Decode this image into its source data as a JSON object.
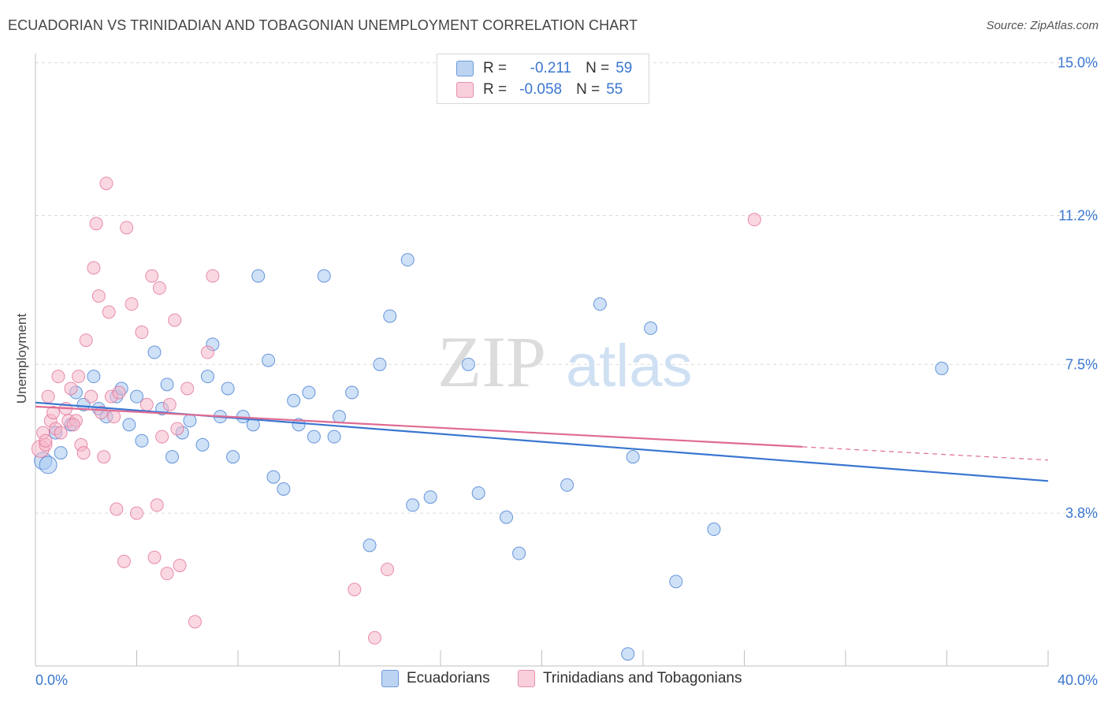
{
  "header": {
    "title": "ECUADORIAN VS TRINIDADIAN AND TOBAGONIAN UNEMPLOYMENT CORRELATION CHART",
    "source": "Source: ZipAtlas.com"
  },
  "watermark": {
    "zip": "ZIP",
    "atlas": "atlas"
  },
  "legend": {
    "rows": [
      {
        "r_label": "R =",
        "r_value": "-0.211",
        "n_label": "N =",
        "n_value": "59",
        "color": "#a8c8f0"
      },
      {
        "r_label": "R =",
        "r_value": "-0.058",
        "n_label": "N =",
        "n_value": "55",
        "color": "#f5b8cb"
      }
    ]
  },
  "chart_data": {
    "type": "scatter",
    "title": "ECUADORIAN VS TRINIDADIAN AND TOBAGONIAN UNEMPLOYMENT CORRELATION CHART",
    "xlabel": "",
    "ylabel": "Unemployment",
    "xlim": [
      0,
      40
    ],
    "ylim": [
      0,
      15
    ],
    "x_tick_labels": [
      "0.0%",
      "40.0%"
    ],
    "y_ticks": [
      3.8,
      7.5,
      11.2,
      15.0
    ],
    "y_tick_labels": [
      "3.8%",
      "7.5%",
      "11.2%",
      "15.0%"
    ],
    "grid": true,
    "legend_position": "top-center",
    "series": [
      {
        "name": "Ecuadorians",
        "color": "#3a76d0",
        "fill": "#a8c8f0",
        "points": [
          [
            0.3,
            5.1
          ],
          [
            0.5,
            5.0
          ],
          [
            0.8,
            5.8
          ],
          [
            1.0,
            5.3
          ],
          [
            1.4,
            6.0
          ],
          [
            1.6,
            6.8
          ],
          [
            1.9,
            6.5
          ],
          [
            2.3,
            7.2
          ],
          [
            2.5,
            6.4
          ],
          [
            2.8,
            6.2
          ],
          [
            3.2,
            6.7
          ],
          [
            3.4,
            6.9
          ],
          [
            3.7,
            6.0
          ],
          [
            4.0,
            6.7
          ],
          [
            4.2,
            5.6
          ],
          [
            4.7,
            7.8
          ],
          [
            5.0,
            6.4
          ],
          [
            5.2,
            7.0
          ],
          [
            5.4,
            5.2
          ],
          [
            5.8,
            5.8
          ],
          [
            6.1,
            6.1
          ],
          [
            6.6,
            5.5
          ],
          [
            6.8,
            7.2
          ],
          [
            7.0,
            8.0
          ],
          [
            7.3,
            6.2
          ],
          [
            7.6,
            6.9
          ],
          [
            7.8,
            5.2
          ],
          [
            8.2,
            6.2
          ],
          [
            8.6,
            6.0
          ],
          [
            8.8,
            9.7
          ],
          [
            9.2,
            7.6
          ],
          [
            9.4,
            4.7
          ],
          [
            9.8,
            4.4
          ],
          [
            10.2,
            6.6
          ],
          [
            10.4,
            6.0
          ],
          [
            10.8,
            6.8
          ],
          [
            11.0,
            5.7
          ],
          [
            11.4,
            9.7
          ],
          [
            11.8,
            5.7
          ],
          [
            12.0,
            6.2
          ],
          [
            12.5,
            6.8
          ],
          [
            13.2,
            3.0
          ],
          [
            13.6,
            7.5
          ],
          [
            14.0,
            8.7
          ],
          [
            14.7,
            10.1
          ],
          [
            14.9,
            4.0
          ],
          [
            15.6,
            4.2
          ],
          [
            17.1,
            7.5
          ],
          [
            17.5,
            4.3
          ],
          [
            18.6,
            3.7
          ],
          [
            19.1,
            2.8
          ],
          [
            21.0,
            4.5
          ],
          [
            22.3,
            9.0
          ],
          [
            23.6,
            5.2
          ],
          [
            24.3,
            8.4
          ],
          [
            25.3,
            2.1
          ],
          [
            26.8,
            3.4
          ],
          [
            35.8,
            7.4
          ],
          [
            23.4,
            0.3
          ]
        ]
      },
      {
        "name": "Trinidadians and Tobagonians",
        "color": "#e06b92",
        "fill": "#f5b8cb",
        "points": [
          [
            0.2,
            5.4
          ],
          [
            0.3,
            5.8
          ],
          [
            0.4,
            5.5
          ],
          [
            0.5,
            6.7
          ],
          [
            0.6,
            6.1
          ],
          [
            0.7,
            6.3
          ],
          [
            0.8,
            5.9
          ],
          [
            0.9,
            7.2
          ],
          [
            1.0,
            5.8
          ],
          [
            1.2,
            6.4
          ],
          [
            1.3,
            6.1
          ],
          [
            1.4,
            6.9
          ],
          [
            1.6,
            6.1
          ],
          [
            1.7,
            7.2
          ],
          [
            1.8,
            5.5
          ],
          [
            1.9,
            5.3
          ],
          [
            2.0,
            8.1
          ],
          [
            2.2,
            6.7
          ],
          [
            2.3,
            9.9
          ],
          [
            2.4,
            11.0
          ],
          [
            2.5,
            9.2
          ],
          [
            2.6,
            6.3
          ],
          [
            2.7,
            5.2
          ],
          [
            2.8,
            12.0
          ],
          [
            2.9,
            8.8
          ],
          [
            3.0,
            6.7
          ],
          [
            3.2,
            3.9
          ],
          [
            3.3,
            6.8
          ],
          [
            3.5,
            2.6
          ],
          [
            3.6,
            10.9
          ],
          [
            3.8,
            9.0
          ],
          [
            4.0,
            3.8
          ],
          [
            4.2,
            8.3
          ],
          [
            4.4,
            6.5
          ],
          [
            4.6,
            9.7
          ],
          [
            4.7,
            2.7
          ],
          [
            4.8,
            4.0
          ],
          [
            4.9,
            9.4
          ],
          [
            5.0,
            5.7
          ],
          [
            5.2,
            2.3
          ],
          [
            5.3,
            6.5
          ],
          [
            5.5,
            8.6
          ],
          [
            5.6,
            5.9
          ],
          [
            5.7,
            2.5
          ],
          [
            6.0,
            6.9
          ],
          [
            6.3,
            1.1
          ],
          [
            6.8,
            7.8
          ],
          [
            7.0,
            9.7
          ],
          [
            12.6,
            1.9
          ],
          [
            13.4,
            0.7
          ],
          [
            13.9,
            2.4
          ],
          [
            28.4,
            11.1
          ],
          [
            1.5,
            6.0
          ],
          [
            0.4,
            5.6
          ],
          [
            3.1,
            6.2
          ]
        ]
      }
    ],
    "trend_lines": [
      {
        "series": "Ecuadorians",
        "x": [
          0,
          40
        ],
        "y": [
          6.55,
          4.6
        ]
      },
      {
        "series": "Trinidadians and Tobagonians",
        "x": [
          0,
          30.3
        ],
        "y": [
          6.45,
          5.45
        ],
        "dashed_extension_to": [
          40,
          5.12
        ]
      }
    ]
  }
}
